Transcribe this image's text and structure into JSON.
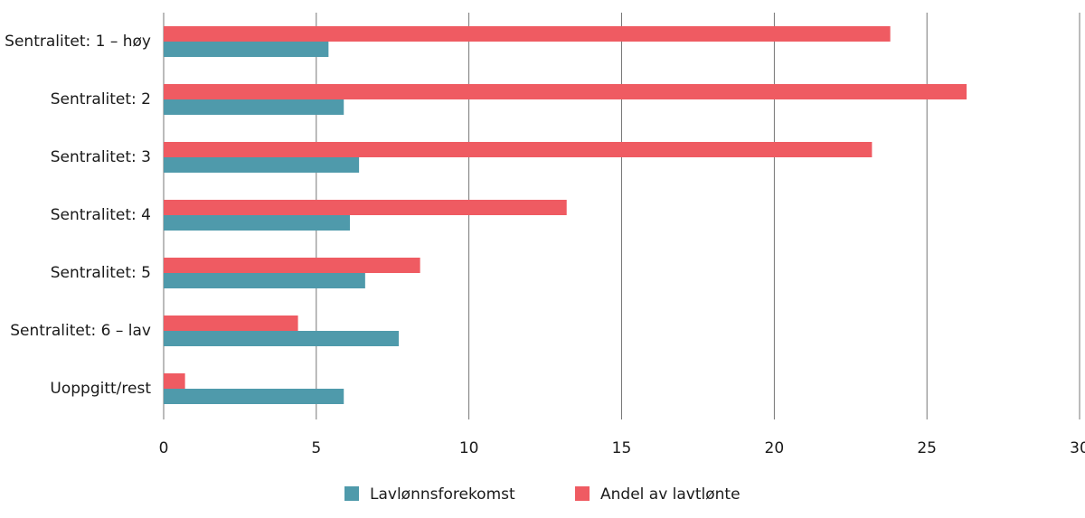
{
  "chart_data": {
    "type": "bar",
    "orientation": "horizontal",
    "categories": [
      "Sentralitet: 1 – høy",
      "Sentralitet: 2",
      "Sentralitet: 3",
      "Sentralitet: 4",
      "Sentralitet: 5",
      "Sentralitet: 6 – lav",
      "Uoppgitt/rest"
    ],
    "series": [
      {
        "name": "Lavlønnsforekomst",
        "color": "#4f9aab",
        "values": [
          5.4,
          5.9,
          6.4,
          6.1,
          6.6,
          7.7,
          5.9
        ]
      },
      {
        "name": "Andel av lavtlønte",
        "color": "#ef5b62",
        "values": [
          23.8,
          26.3,
          23.2,
          13.2,
          8.4,
          4.4,
          0.7
        ]
      }
    ],
    "xlim": [
      0,
      30
    ],
    "xticks": [
      0,
      5,
      10,
      15,
      20,
      25,
      30
    ],
    "grid": true,
    "legend": "bottom"
  }
}
